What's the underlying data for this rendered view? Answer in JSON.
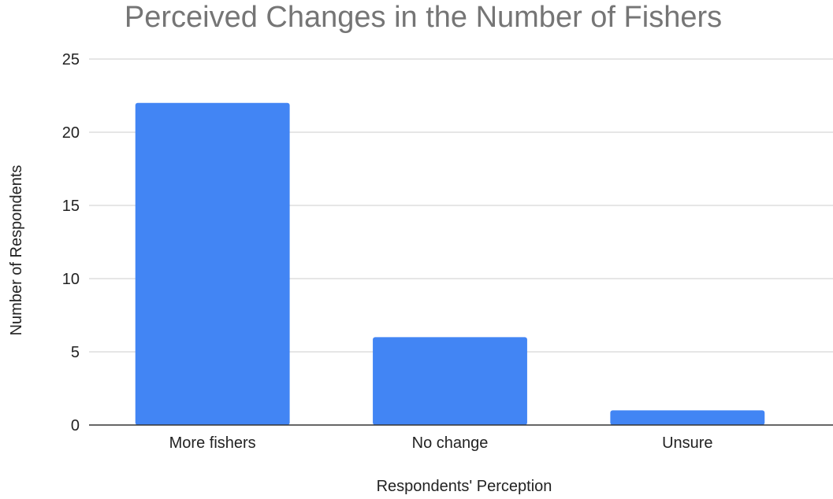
{
  "chart_data": {
    "type": "bar",
    "title": "Perceived Changes in the Number of Fishers",
    "xlabel": "Respondents' Perception",
    "ylabel": "Number of Respondents",
    "categories": [
      "More fishers",
      "No change",
      "Unsure"
    ],
    "values": [
      22,
      6,
      1
    ],
    "ylim": [
      0,
      25
    ],
    "yticks": [
      0,
      5,
      10,
      15,
      20,
      25
    ],
    "grid": true,
    "legend": "none",
    "bar_color": "#4285f4"
  }
}
